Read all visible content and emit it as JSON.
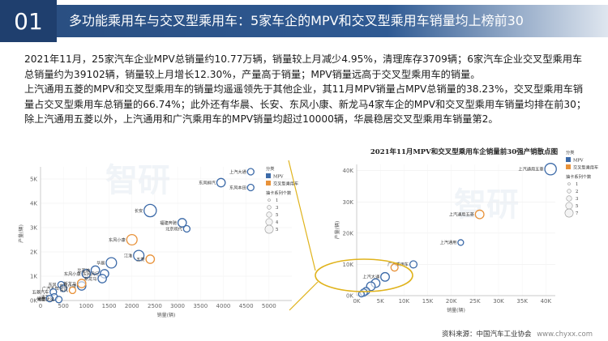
{
  "header": {
    "number": "01",
    "title": "多功能乘用车与交叉型乘用车：5家车企的MPV和交叉型乘用车销量均上榜前30"
  },
  "intro": {
    "para1": "2021年11月，25家汽车企业MPV总销量约10.77万辆，销量较上月减少4.95%，清理库存3709辆；6家汽车企业交叉型乘用车总销量约为39102辆，销量较上月增长12.30%，产量高于销量；MPV销量远高于交叉型乘用车的销量。",
    "para2": "上汽通用五菱的MPV和交叉型乘用车的销量均遥遥领先于其他企业，其11月MPV销量占MPV总销量的38.23%，交叉型乘用车销量占交叉型乘用车总销量的66.74%；此外还有华晨、长安、东风小康、新龙马4家车企的MPV和交叉型乘用车销量均排在前30；除上汽通用五菱以外，上汽通用和广汽乘用车的MPV销量均超过10000辆，华晨稳居交叉型乘用车销量第2。"
  },
  "source": {
    "label": "资料来源：中国汽车工业协会",
    "url": "www.chyxx.com"
  },
  "watermark": "智研",
  "colors": {
    "mpv": "#3c6aa8",
    "cross": "#e8923a",
    "header": "#1f3f6e",
    "callout": "#e0b31c"
  },
  "chart_data": [
    {
      "type": "scatter",
      "title": "",
      "xlabel": "销量(辆)",
      "ylabel": "产量(辆)",
      "xlim": [
        0,
        5500
      ],
      "ylim": [
        0,
        5500
      ],
      "xticks": [
        "0",
        "500",
        "1000",
        "1500",
        "2000",
        "2500",
        "3000",
        "3500",
        "4000",
        "4500",
        "5000"
      ],
      "yticks": [
        "0K",
        "1K",
        "2K",
        "3K",
        "4K",
        "5K"
      ],
      "legend": {
        "title": "分类",
        "items": [
          "MPV",
          "交叉型乘用车"
        ],
        "size_title": "抽卡系列个数",
        "size_items": [
          "1",
          "3",
          "5",
          "4",
          "5"
        ]
      },
      "series": [
        {
          "name": "MPV",
          "points": [
            {
              "label": "上汽大通",
              "x": 4600,
              "y": 5300,
              "size": 1
            },
            {
              "label": "东风柳汽",
              "x": 3950,
              "y": 4850,
              "size": 2
            },
            {
              "label": "东风本田",
              "x": 4600,
              "y": 4650,
              "size": 1
            },
            {
              "label": "长安",
              "x": 2400,
              "y": 3700,
              "size": 4
            },
            {
              "label": "福建奔驰",
              "x": 3100,
              "y": 3200,
              "size": 2
            },
            {
              "label": "北京现代",
              "x": 3200,
              "y": 2950,
              "size": 1
            },
            {
              "label": "江淮",
              "x": 2150,
              "y": 1850,
              "size": 3
            },
            {
              "label": "华晨",
              "x": 1550,
              "y": 1550,
              "size": 3
            },
            {
              "label": "东风小康",
              "x": 1000,
              "y": 1100,
              "size": 2
            },
            {
              "label": "比亚迪",
              "x": 1200,
              "y": 1250,
              "size": 2
            },
            {
              "label": "东风风行",
              "x": 1400,
              "y": 1100,
              "size": 2
            },
            {
              "label": "新龙马",
              "x": 1350,
              "y": 900,
              "size": 2
            },
            {
              "label": "东风",
              "x": 450,
              "y": 650,
              "size": 1
            },
            {
              "label": "广汽本田",
              "x": 500,
              "y": 500,
              "size": 1
            },
            {
              "label": "五菱汽车",
              "x": 280,
              "y": 350,
              "size": 1
            },
            {
              "label": "东风小康",
              "x": 900,
              "y": 600,
              "size": 2
            },
            {
              "label": "吉利",
              "x": 300,
              "y": 150,
              "size": 1
            },
            {
              "label": "福田",
              "x": 200,
              "y": 80,
              "size": 1
            },
            {
              "label": "成都大运",
              "x": 400,
              "y": 40,
              "size": 1
            }
          ]
        },
        {
          "name": "交叉型乘用车",
          "points": [
            {
              "label": "东风小康",
              "x": 2000,
              "y": 2500,
              "size": 3
            },
            {
              "label": "五菱",
              "x": 2400,
              "y": 1700,
              "size": 2
            },
            {
              "label": "新龙马",
              "x": 900,
              "y": 700,
              "size": 2
            },
            {
              "label": "东风",
              "x": 700,
              "y": 420,
              "size": 1
            }
          ]
        }
      ]
    },
    {
      "type": "scatter",
      "title": "2021年11月MPV和交叉型乘用车企销量前30强产销散点图",
      "xlabel": "销量(辆)",
      "ylabel": "产量(辆)",
      "xlim": [
        0,
        42000
      ],
      "ylim": [
        0,
        42000
      ],
      "xticks": [
        "0K",
        "5K",
        "10K",
        "15K",
        "20K",
        "25K",
        "30K",
        "35K",
        "40K"
      ],
      "yticks": [
        "0K",
        "10K",
        "20K",
        "30K",
        "40K"
      ],
      "legend": {
        "title": "分类",
        "items": [
          "MPV",
          "交叉型乘用车"
        ],
        "size_title": "抽卡系列个数",
        "size_items": [
          "1",
          "2",
          "3",
          "5",
          "7"
        ]
      },
      "series": [
        {
          "name": "MPV",
          "points": [
            {
              "label": "上汽通用五菱",
              "x": 41000,
              "y": 40500,
              "size": 5
            },
            {
              "label": "上汽通用",
              "x": 22000,
              "y": 17000,
              "size": 1
            },
            {
              "label": "广汽乘用车",
              "x": 12000,
              "y": 10000,
              "size": 2
            },
            {
              "label": "上汽大通",
              "x": 6000,
              "y": 6000,
              "size": 3
            },
            {
              "label": "",
              "x": 4000,
              "y": 4000,
              "size": 3
            },
            {
              "label": "",
              "x": 3000,
              "y": 3000,
              "size": 3
            },
            {
              "label": "",
              "x": 2000,
              "y": 1500,
              "size": 2
            },
            {
              "label": "",
              "x": 1500,
              "y": 1000,
              "size": 2
            },
            {
              "label": "",
              "x": 1000,
              "y": 500,
              "size": 1
            }
          ]
        },
        {
          "name": "交叉型乘用车",
          "points": [
            {
              "label": "上汽通用五菱",
              "x": 26000,
              "y": 26000,
              "size": 3
            },
            {
              "label": "",
              "x": 8000,
              "y": 9000,
              "size": 2
            }
          ]
        }
      ]
    }
  ]
}
